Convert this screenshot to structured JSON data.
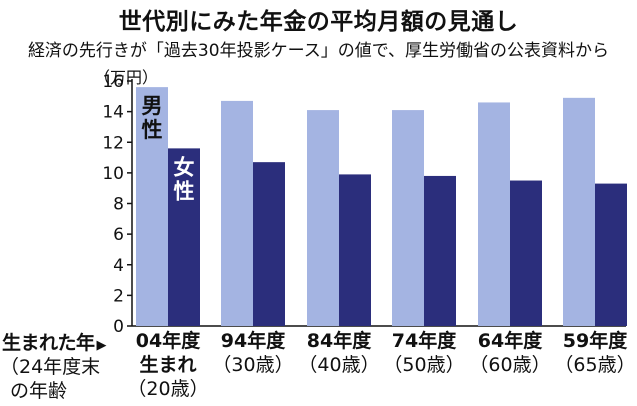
{
  "chart_data": {
    "type": "bar",
    "title": "世代別にみた年金の平均月額の見通し",
    "subtitle": "経済の先行きが「過去30年投影ケース」の値で、厚生労働省の公表資料から",
    "ylabel": "（万円）",
    "ylim": [
      0,
      16
    ],
    "yticks": [
      "0",
      "2",
      "4",
      "6",
      "8",
      "10",
      "12",
      "14",
      "16"
    ],
    "grid": false,
    "categories": [
      {
        "line1": "04年度",
        "line2": "生まれ",
        "line3": "（20歳）"
      },
      {
        "line1": "94年度",
        "line2": "（30歳）",
        "line3": ""
      },
      {
        "line1": "84年度",
        "line2": "（40歳）",
        "line3": ""
      },
      {
        "line1": "74年度",
        "line2": "（50歳）",
        "line3": ""
      },
      {
        "line1": "64年度",
        "line2": "（60歳）",
        "line3": ""
      },
      {
        "line1": "59年度",
        "line2": "（65歳）",
        "line3": ""
      }
    ],
    "series": [
      {
        "name": "男性",
        "name_chars": [
          "男",
          "性"
        ],
        "color": "#a4b4e2",
        "values": [
          15.6,
          14.7,
          14.1,
          14.1,
          14.6,
          14.9
        ]
      },
      {
        "name": "女性",
        "name_chars": [
          "女",
          "性"
        ],
        "color": "#2b2e7c",
        "values": [
          11.6,
          10.7,
          9.9,
          9.8,
          9.5,
          9.3
        ]
      }
    ],
    "row_label": {
      "line1": "生まれた年",
      "arrow": "▶",
      "line2": "（24年度末",
      "line3": "の年齢"
    }
  }
}
